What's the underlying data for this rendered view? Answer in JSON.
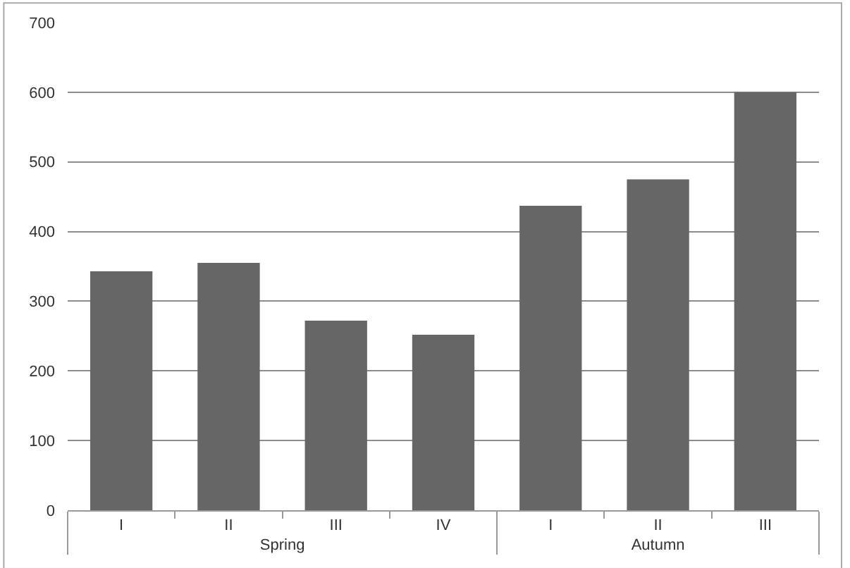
{
  "chart_data": {
    "type": "bar",
    "categories": [
      "I",
      "II",
      "III",
      "IV",
      "I",
      "II",
      "III"
    ],
    "values": [
      343,
      355,
      272,
      252,
      437,
      475,
      600
    ],
    "color": "#666666",
    "annotations": [
      "Spring",
      "Autumn"
    ],
    "ylim": [
      0,
      700
    ],
    "yticks": [
      0,
      100,
      200,
      300,
      400,
      500,
      600,
      700
    ],
    "grid": "y",
    "legend": false
  }
}
